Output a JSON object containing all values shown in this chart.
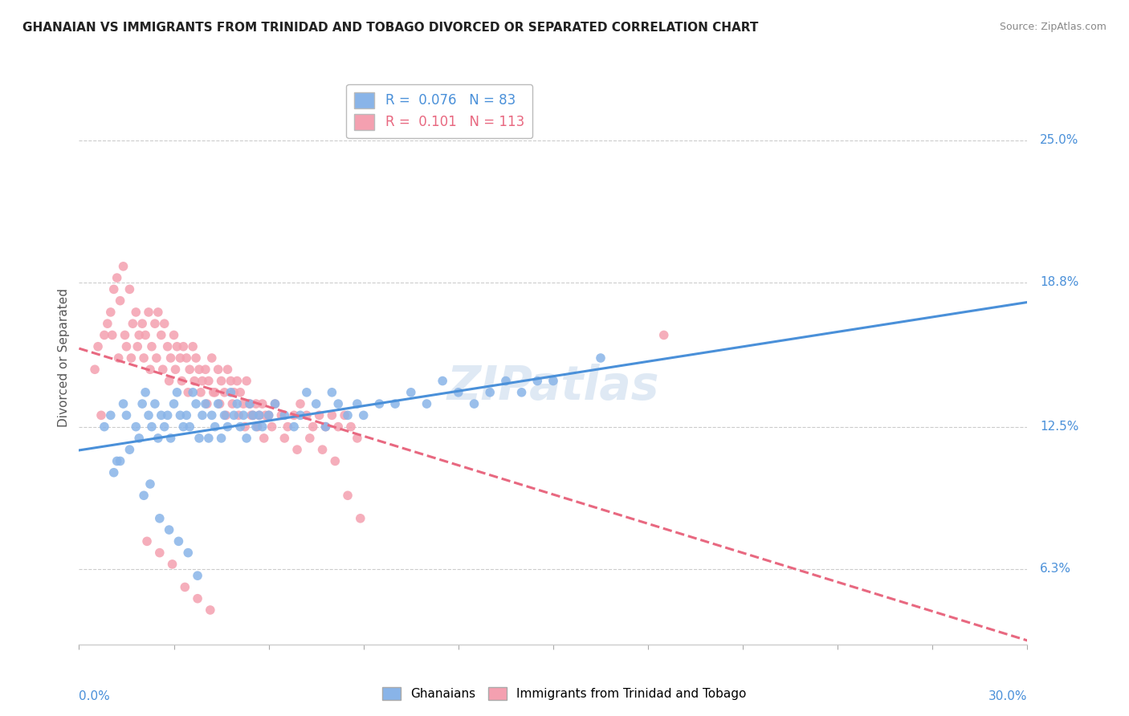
{
  "title": "GHANAIAN VS IMMIGRANTS FROM TRINIDAD AND TOBAGO DIVORCED OR SEPARATED CORRELATION CHART",
  "source": "Source: ZipAtlas.com",
  "xlim": [
    0.0,
    30.0
  ],
  "ylim": [
    3.0,
    28.0
  ],
  "yticks": [
    6.3,
    12.5,
    18.8,
    25.0
  ],
  "legend_blue_r": "0.076",
  "legend_blue_n": "83",
  "legend_pink_r": "0.101",
  "legend_pink_n": "113",
  "blue_color": "#89B4E8",
  "pink_color": "#F4A0B0",
  "blue_line_color": "#4A90D9",
  "pink_line_color": "#E86880",
  "blue_scatter_x": [
    0.8,
    1.0,
    1.2,
    1.4,
    1.5,
    1.6,
    1.8,
    1.9,
    2.0,
    2.1,
    2.2,
    2.3,
    2.4,
    2.5,
    2.6,
    2.7,
    2.8,
    2.9,
    3.0,
    3.1,
    3.2,
    3.3,
    3.4,
    3.5,
    3.6,
    3.7,
    3.8,
    3.9,
    4.0,
    4.1,
    4.2,
    4.3,
    4.4,
    4.5,
    4.6,
    4.7,
    4.8,
    4.9,
    5.0,
    5.1,
    5.2,
    5.3,
    5.4,
    5.5,
    5.6,
    5.7,
    5.8,
    6.0,
    6.2,
    6.5,
    6.8,
    7.0,
    7.2,
    7.5,
    7.8,
    8.0,
    8.2,
    8.5,
    8.8,
    9.0,
    9.5,
    10.0,
    10.5,
    11.0,
    11.5,
    12.0,
    12.5,
    13.0,
    13.5,
    14.0,
    14.5,
    15.0,
    16.5,
    1.1,
    1.3,
    2.05,
    2.25,
    2.55,
    2.85,
    3.15,
    3.45,
    3.75
  ],
  "blue_scatter_y": [
    12.5,
    13.0,
    11.0,
    13.5,
    13.0,
    11.5,
    12.5,
    12.0,
    13.5,
    14.0,
    13.0,
    12.5,
    13.5,
    12.0,
    13.0,
    12.5,
    13.0,
    12.0,
    13.5,
    14.0,
    13.0,
    12.5,
    13.0,
    12.5,
    14.0,
    13.5,
    12.0,
    13.0,
    13.5,
    12.0,
    13.0,
    12.5,
    13.5,
    12.0,
    13.0,
    12.5,
    14.0,
    13.0,
    13.5,
    12.5,
    13.0,
    12.0,
    13.5,
    13.0,
    12.5,
    13.0,
    12.5,
    13.0,
    13.5,
    13.0,
    12.5,
    13.0,
    14.0,
    13.5,
    12.5,
    14.0,
    13.5,
    13.0,
    13.5,
    13.0,
    13.5,
    13.5,
    14.0,
    13.5,
    14.5,
    14.0,
    13.5,
    14.0,
    14.5,
    14.0,
    14.5,
    14.5,
    15.5,
    10.5,
    11.0,
    9.5,
    10.0,
    8.5,
    8.0,
    7.5,
    7.0,
    6.0
  ],
  "pink_scatter_x": [
    0.5,
    0.7,
    0.8,
    1.0,
    1.1,
    1.2,
    1.3,
    1.4,
    1.5,
    1.6,
    1.7,
    1.8,
    1.9,
    2.0,
    2.1,
    2.2,
    2.3,
    2.4,
    2.5,
    2.6,
    2.7,
    2.8,
    2.9,
    3.0,
    3.1,
    3.2,
    3.3,
    3.4,
    3.5,
    3.6,
    3.7,
    3.8,
    3.9,
    4.0,
    4.1,
    4.2,
    4.3,
    4.4,
    4.5,
    4.6,
    4.7,
    4.8,
    4.9,
    5.0,
    5.1,
    5.2,
    5.3,
    5.4,
    5.5,
    5.6,
    5.7,
    5.8,
    5.9,
    6.0,
    6.2,
    6.4,
    6.6,
    6.8,
    7.0,
    7.2,
    7.4,
    7.6,
    7.8,
    8.0,
    8.2,
    8.4,
    8.6,
    8.8,
    0.6,
    0.9,
    1.05,
    1.25,
    1.45,
    1.65,
    1.85,
    2.05,
    2.25,
    2.45,
    2.65,
    2.85,
    3.05,
    3.25,
    3.45,
    3.65,
    3.85,
    4.05,
    4.25,
    4.45,
    4.65,
    4.85,
    5.05,
    5.25,
    5.45,
    5.65,
    5.85,
    6.1,
    6.5,
    6.9,
    7.3,
    7.7,
    8.1,
    8.5,
    8.9,
    2.15,
    2.55,
    2.95,
    3.35,
    3.75,
    4.15,
    18.5
  ],
  "pink_scatter_y": [
    15.0,
    13.0,
    16.5,
    17.5,
    18.5,
    19.0,
    18.0,
    19.5,
    16.0,
    18.5,
    17.0,
    17.5,
    16.5,
    17.0,
    16.5,
    17.5,
    16.0,
    17.0,
    17.5,
    16.5,
    17.0,
    16.0,
    15.5,
    16.5,
    16.0,
    15.5,
    16.0,
    15.5,
    15.0,
    16.0,
    15.5,
    15.0,
    14.5,
    15.0,
    14.5,
    15.5,
    14.0,
    15.0,
    14.5,
    14.0,
    15.0,
    14.5,
    14.0,
    14.5,
    14.0,
    13.5,
    14.5,
    13.5,
    13.0,
    13.5,
    13.0,
    13.5,
    13.0,
    13.0,
    13.5,
    13.0,
    12.5,
    13.0,
    13.5,
    13.0,
    12.5,
    13.0,
    12.5,
    13.0,
    12.5,
    13.0,
    12.5,
    12.0,
    16.0,
    17.0,
    16.5,
    15.5,
    16.5,
    15.5,
    16.0,
    15.5,
    15.0,
    15.5,
    15.0,
    14.5,
    15.0,
    14.5,
    14.0,
    14.5,
    14.0,
    13.5,
    14.0,
    13.5,
    13.0,
    13.5,
    13.0,
    12.5,
    13.0,
    12.5,
    12.0,
    12.5,
    12.0,
    11.5,
    12.0,
    11.5,
    11.0,
    9.5,
    8.5,
    7.5,
    7.0,
    6.5,
    5.5,
    5.0,
    4.5,
    16.5
  ]
}
